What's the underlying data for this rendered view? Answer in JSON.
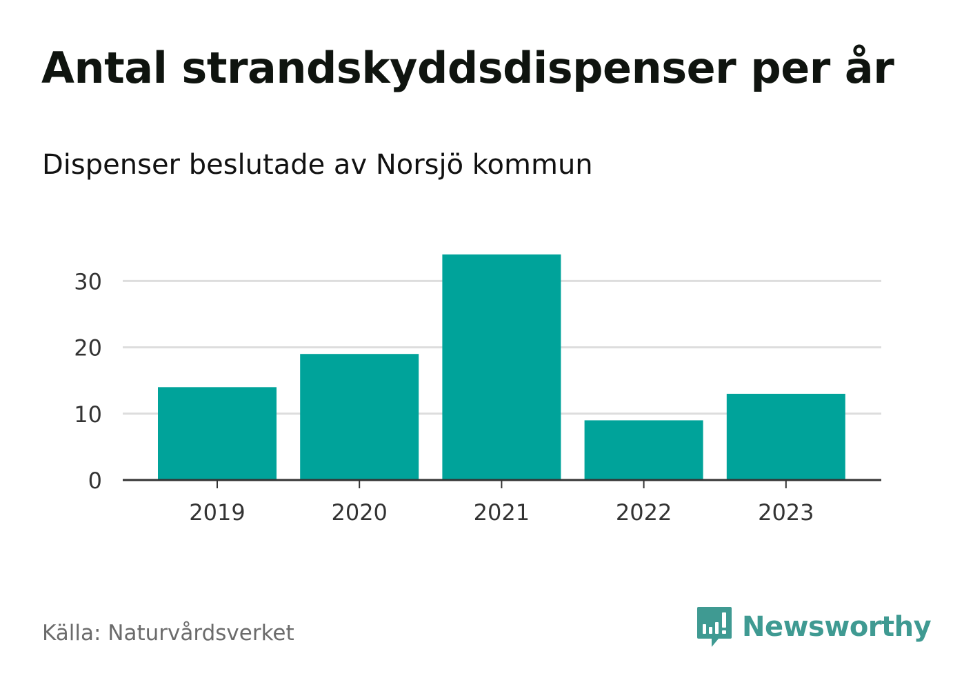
{
  "title": "Antal strandskyddsdispenser per år",
  "subtitle": "Dispenser beslutade av Norsjö kommun",
  "source": "Källa: Naturvårdsverket",
  "brand": {
    "name": "Newsworthy",
    "icon": "newsworthy-logo-icon",
    "color": "#3f9a92"
  },
  "colors": {
    "bar": "#00a39a",
    "grid": "#dddddd",
    "axis": "#333333"
  },
  "chart_data": {
    "type": "bar",
    "title": "Antal strandskyddsdispenser per år",
    "subtitle": "Dispenser beslutade av Norsjö kommun",
    "categories": [
      "2019",
      "2020",
      "2021",
      "2022",
      "2023"
    ],
    "values": [
      14,
      19,
      34,
      9,
      13
    ],
    "xlabel": "",
    "ylabel": "",
    "ylim": [
      0,
      34
    ],
    "yticks": [
      0,
      10,
      20,
      30
    ],
    "grid": true
  }
}
